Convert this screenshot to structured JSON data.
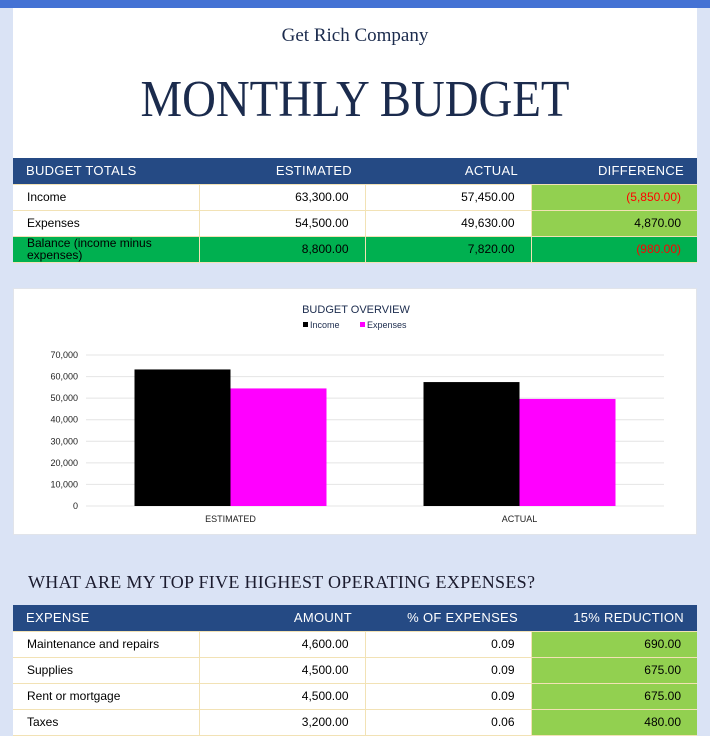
{
  "header": {
    "company": "Get Rich Company",
    "title": "MONTHLY BUDGET"
  },
  "totals": {
    "columns": [
      "BUDGET TOTALS",
      "ESTIMATED",
      "ACTUAL",
      "DIFFERENCE"
    ],
    "rows": [
      {
        "label": "Income",
        "estimated": "63,300.00",
        "actual": "57,450.00",
        "difference": "(5,850.00)"
      },
      {
        "label": "Expenses",
        "estimated": "54,500.00",
        "actual": "49,630.00",
        "difference": "4,870.00"
      },
      {
        "label": "Balance (income minus expenses)",
        "estimated": "8,800.00",
        "actual": "7,820.00",
        "difference": "(980.00)"
      }
    ]
  },
  "chart_data": {
    "type": "bar",
    "title": "BUDGET OVERVIEW",
    "categories": [
      "ESTIMATED",
      "ACTUAL"
    ],
    "series": [
      {
        "name": "Income",
        "values": [
          63300,
          57450
        ],
        "color": "#000000"
      },
      {
        "name": "Expenses",
        "values": [
          54500,
          49630
        ],
        "color": "#ff00ff"
      }
    ],
    "ylim": [
      0,
      70000
    ],
    "yticks": [
      0,
      10000,
      20000,
      30000,
      40000,
      50000,
      60000,
      70000
    ],
    "ytick_labels": [
      "0",
      "10,000",
      "20,000",
      "30,000",
      "40,000",
      "50,000",
      "60,000",
      "70,000"
    ],
    "legend": "top",
    "grid": true
  },
  "question": "WHAT ARE MY TOP FIVE HIGHEST OPERATING EXPENSES?",
  "expenses": {
    "columns": [
      "EXPENSE",
      "AMOUNT",
      "% OF EXPENSES",
      "15% REDUCTION"
    ],
    "rows": [
      {
        "label": "Maintenance and repairs",
        "amount": "4,600.00",
        "pct": "0.09",
        "reduction": "690.00"
      },
      {
        "label": "Supplies",
        "amount": "4,500.00",
        "pct": "0.09",
        "reduction": "675.00"
      },
      {
        "label": "Rent or mortgage",
        "amount": "4,500.00",
        "pct": "0.09",
        "reduction": "675.00"
      },
      {
        "label": "Taxes",
        "amount": "3,200.00",
        "pct": "0.06",
        "reduction": "480.00"
      }
    ]
  }
}
